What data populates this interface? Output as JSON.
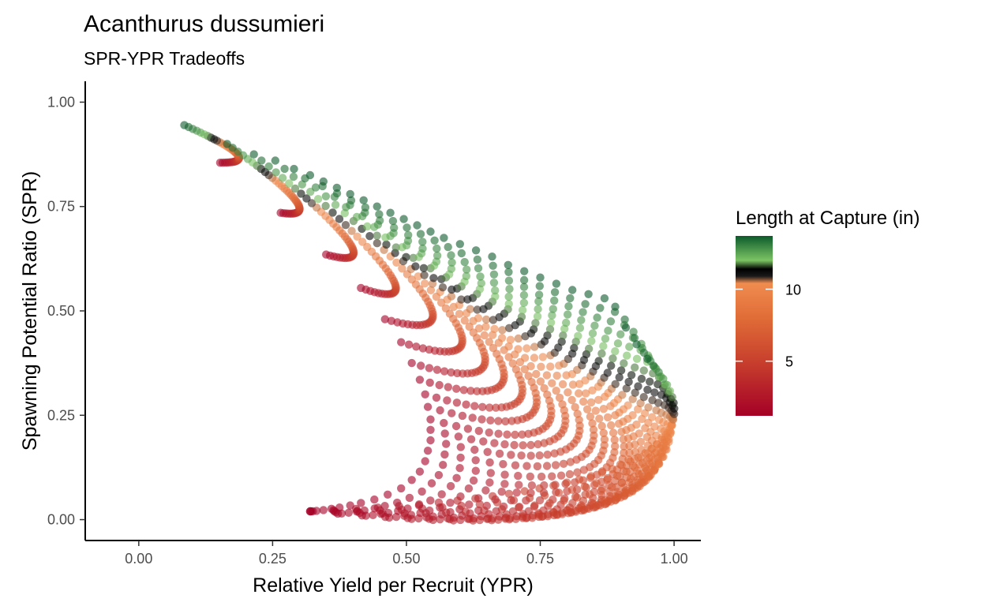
{
  "chart_data": {
    "type": "scatter",
    "title": "Acanthurus dussumieri",
    "subtitle": "SPR-YPR Tradeoffs",
    "xlabel": "Relative Yield per Recruit (YPR)",
    "ylabel": "Spawning Potential Ratio (SPR)",
    "xlim": [
      -0.1,
      1.05
    ],
    "ylim": [
      -0.05,
      1.05
    ],
    "x_ticks": [
      {
        "value": 0,
        "label": "0.00"
      },
      {
        "value": 0.25,
        "label": "0.25"
      },
      {
        "value": 0.5,
        "label": "0.50"
      },
      {
        "value": 0.75,
        "label": "0.75"
      },
      {
        "value": 1.0,
        "label": "1.00"
      }
    ],
    "y_ticks": [
      {
        "value": 0,
        "label": "0.00"
      },
      {
        "value": 0.25,
        "label": "0.25"
      },
      {
        "value": 0.5,
        "label": "0.50"
      },
      {
        "value": 0.75,
        "label": "0.75"
      },
      {
        "value": 1.0,
        "label": "1.00"
      }
    ],
    "grid": false,
    "color_legend": {
      "title": "Length at Capture (in)",
      "placement": "right",
      "range": [
        1.2,
        13.7
      ],
      "ticks": [
        {
          "value": 5,
          "label": "5"
        },
        {
          "value": 10,
          "label": "10"
        }
      ],
      "stops": [
        {
          "value": 1.2,
          "color": "#a50026"
        },
        {
          "value": 5.0,
          "color": "#c8402d"
        },
        {
          "value": 8.0,
          "color": "#e06c37"
        },
        {
          "value": 10.4,
          "color": "#f08c4f"
        },
        {
          "value": 10.9,
          "color": "#1a1a1a"
        },
        {
          "value": 11.4,
          "color": "#000000"
        },
        {
          "value": 12.0,
          "color": "#7cc464"
        },
        {
          "value": 13.7,
          "color": "#0c5a2b"
        }
      ]
    },
    "point_color_note_colors": {
      "point_opacity": 0.6
    },
    "series_by_fishing_level": [
      {
        "top": [
          0.085,
          0.945
        ],
        "kink": [
          0.15,
          0.905
        ],
        "end": [
          0.152,
          0.855
        ]
      },
      {
        "top": [
          0.165,
          0.9
        ],
        "kink": [
          0.248,
          0.82
        ],
        "end": [
          0.265,
          0.735
        ]
      },
      {
        "top": [
          0.215,
          0.875
        ],
        "kink": [
          0.33,
          0.75
        ],
        "end": [
          0.35,
          0.635
        ]
      },
      {
        "top": [
          0.255,
          0.86
        ],
        "kink": [
          0.395,
          0.695
        ],
        "end": [
          0.415,
          0.555
        ]
      },
      {
        "top": [
          0.29,
          0.84
        ],
        "kink": [
          0.455,
          0.65
        ],
        "end": [
          0.46,
          0.48
        ]
      },
      {
        "top": [
          0.32,
          0.825
        ],
        "kink": [
          0.505,
          0.605
        ],
        "end": [
          0.49,
          0.425
        ]
      },
      {
        "top": [
          0.345,
          0.81
        ],
        "kink": [
          0.545,
          0.57
        ],
        "end": [
          0.51,
          0.375
        ]
      },
      {
        "top": [
          0.37,
          0.795
        ],
        "kink": [
          0.58,
          0.54
        ],
        "end": [
          0.525,
          0.335
        ]
      },
      {
        "top": [
          0.395,
          0.78
        ],
        "kink": [
          0.615,
          0.51
        ],
        "end": [
          0.535,
          0.3
        ]
      },
      {
        "top": [
          0.42,
          0.765
        ],
        "kink": [
          0.645,
          0.485
        ],
        "end": [
          0.54,
          0.27
        ]
      },
      {
        "top": [
          0.445,
          0.75
        ],
        "kink": [
          0.675,
          0.46
        ],
        "end": [
          0.545,
          0.24
        ]
      },
      {
        "top": [
          0.47,
          0.735
        ],
        "kink": [
          0.705,
          0.44
        ],
        "end": [
          0.545,
          0.215
        ]
      },
      {
        "top": [
          0.495,
          0.72
        ],
        "kink": [
          0.735,
          0.42
        ],
        "end": [
          0.545,
          0.19
        ]
      },
      {
        "top": [
          0.52,
          0.705
        ],
        "kink": [
          0.765,
          0.4
        ],
        "end": [
          0.54,
          0.165
        ]
      },
      {
        "top": [
          0.545,
          0.69
        ],
        "kink": [
          0.79,
          0.38
        ],
        "end": [
          0.535,
          0.14
        ]
      },
      {
        "top": [
          0.57,
          0.675
        ],
        "kink": [
          0.815,
          0.365
        ],
        "end": [
          0.525,
          0.115
        ]
      },
      {
        "top": [
          0.6,
          0.66
        ],
        "kink": [
          0.84,
          0.35
        ],
        "end": [
          0.51,
          0.095
        ]
      },
      {
        "top": [
          0.63,
          0.645
        ],
        "kink": [
          0.86,
          0.335
        ],
        "end": [
          0.49,
          0.075
        ]
      },
      {
        "top": [
          0.66,
          0.63
        ],
        "kink": [
          0.88,
          0.32
        ],
        "end": [
          0.465,
          0.06
        ]
      },
      {
        "top": [
          0.69,
          0.61
        ],
        "kink": [
          0.9,
          0.305
        ],
        "end": [
          0.44,
          0.048
        ]
      },
      {
        "top": [
          0.72,
          0.595
        ],
        "kink": [
          0.92,
          0.295
        ],
        "end": [
          0.415,
          0.04
        ]
      },
      {
        "top": [
          0.75,
          0.58
        ],
        "kink": [
          0.935,
          0.285
        ],
        "end": [
          0.395,
          0.034
        ]
      },
      {
        "top": [
          0.78,
          0.565
        ],
        "kink": [
          0.95,
          0.275
        ],
        "end": [
          0.375,
          0.029
        ]
      },
      {
        "top": [
          0.81,
          0.55
        ],
        "kink": [
          0.965,
          0.268
        ],
        "end": [
          0.36,
          0.026
        ]
      },
      {
        "top": [
          0.84,
          0.54
        ],
        "kink": [
          0.975,
          0.262
        ],
        "end": [
          0.345,
          0.023
        ]
      },
      {
        "top": [
          0.87,
          0.53
        ],
        "kink": [
          0.985,
          0.257
        ],
        "end": [
          0.332,
          0.021
        ]
      },
      {
        "top": [
          0.89,
          0.51
        ],
        "kink": [
          0.992,
          0.252
        ],
        "end": [
          0.325,
          0.02
        ]
      },
      {
        "top": [
          0.91,
          0.46
        ],
        "kink": [
          0.996,
          0.248
        ],
        "end": [
          0.322,
          0.02
        ]
      },
      {
        "top": [
          0.93,
          0.42
        ],
        "kink": [
          0.998,
          0.245
        ],
        "end": [
          0.32,
          0.02
        ]
      },
      {
        "top": [
          0.95,
          0.385
        ],
        "kink": [
          0.999,
          0.243
        ],
        "end": [
          0.32,
          0.02
        ]
      }
    ]
  }
}
